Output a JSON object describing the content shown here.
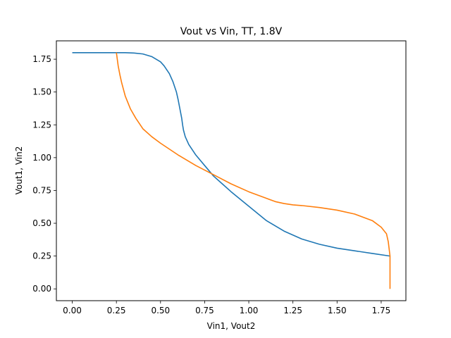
{
  "chart_data": {
    "type": "line",
    "title": "Vout vs Vin, TT, 1.8V",
    "xlabel": "Vin1, Vout2",
    "ylabel": "Vout1, Vin2",
    "xlim": [
      -0.09,
      1.89
    ],
    "ylim": [
      -0.09,
      1.89
    ],
    "xticks": [
      0.0,
      0.25,
      0.5,
      0.75,
      1.0,
      1.25,
      1.5,
      1.75
    ],
    "xtick_labels": [
      "0.00",
      "0.25",
      "0.50",
      "0.75",
      "1.00",
      "1.25",
      "1.50",
      "1.75"
    ],
    "yticks": [
      0.0,
      0.25,
      0.5,
      0.75,
      1.0,
      1.25,
      1.5,
      1.75
    ],
    "ytick_labels": [
      "0.00",
      "0.25",
      "0.50",
      "0.75",
      "1.00",
      "1.25",
      "1.50",
      "1.75"
    ],
    "grid": false,
    "series": [
      {
        "color": "#1f77b4",
        "x": [
          0.0,
          0.1,
          0.2,
          0.25,
          0.3,
          0.35,
          0.4,
          0.45,
          0.5,
          0.52,
          0.55,
          0.57,
          0.59,
          0.6,
          0.61,
          0.62,
          0.625,
          0.63,
          0.64,
          0.66,
          0.7,
          0.75,
          0.8,
          0.85,
          0.9,
          1.0,
          1.1,
          1.2,
          1.3,
          1.4,
          1.5,
          1.6,
          1.7,
          1.8
        ],
        "y": [
          1.8,
          1.8,
          1.8,
          1.8,
          1.8,
          1.797,
          1.79,
          1.77,
          1.73,
          1.7,
          1.64,
          1.58,
          1.5,
          1.44,
          1.37,
          1.3,
          1.25,
          1.21,
          1.16,
          1.1,
          1.02,
          0.94,
          0.86,
          0.8,
          0.74,
          0.63,
          0.52,
          0.44,
          0.38,
          0.34,
          0.31,
          0.29,
          0.27,
          0.25
        ]
      },
      {
        "color": "#ff7f0e",
        "x": [
          0.25,
          0.26,
          0.27,
          0.28,
          0.3,
          0.33,
          0.36,
          0.4,
          0.45,
          0.5,
          0.6,
          0.7,
          0.8,
          0.9,
          1.0,
          1.1,
          1.15,
          1.2,
          1.25,
          1.3,
          1.4,
          1.5,
          1.6,
          1.7,
          1.75,
          1.78,
          1.79,
          1.8,
          1.8
        ],
        "y": [
          1.8,
          1.7,
          1.63,
          1.57,
          1.47,
          1.37,
          1.3,
          1.22,
          1.16,
          1.11,
          1.02,
          0.94,
          0.87,
          0.8,
          0.74,
          0.69,
          0.665,
          0.65,
          0.64,
          0.635,
          0.62,
          0.6,
          0.57,
          0.52,
          0.47,
          0.42,
          0.36,
          0.25,
          0.0
        ]
      }
    ]
  }
}
